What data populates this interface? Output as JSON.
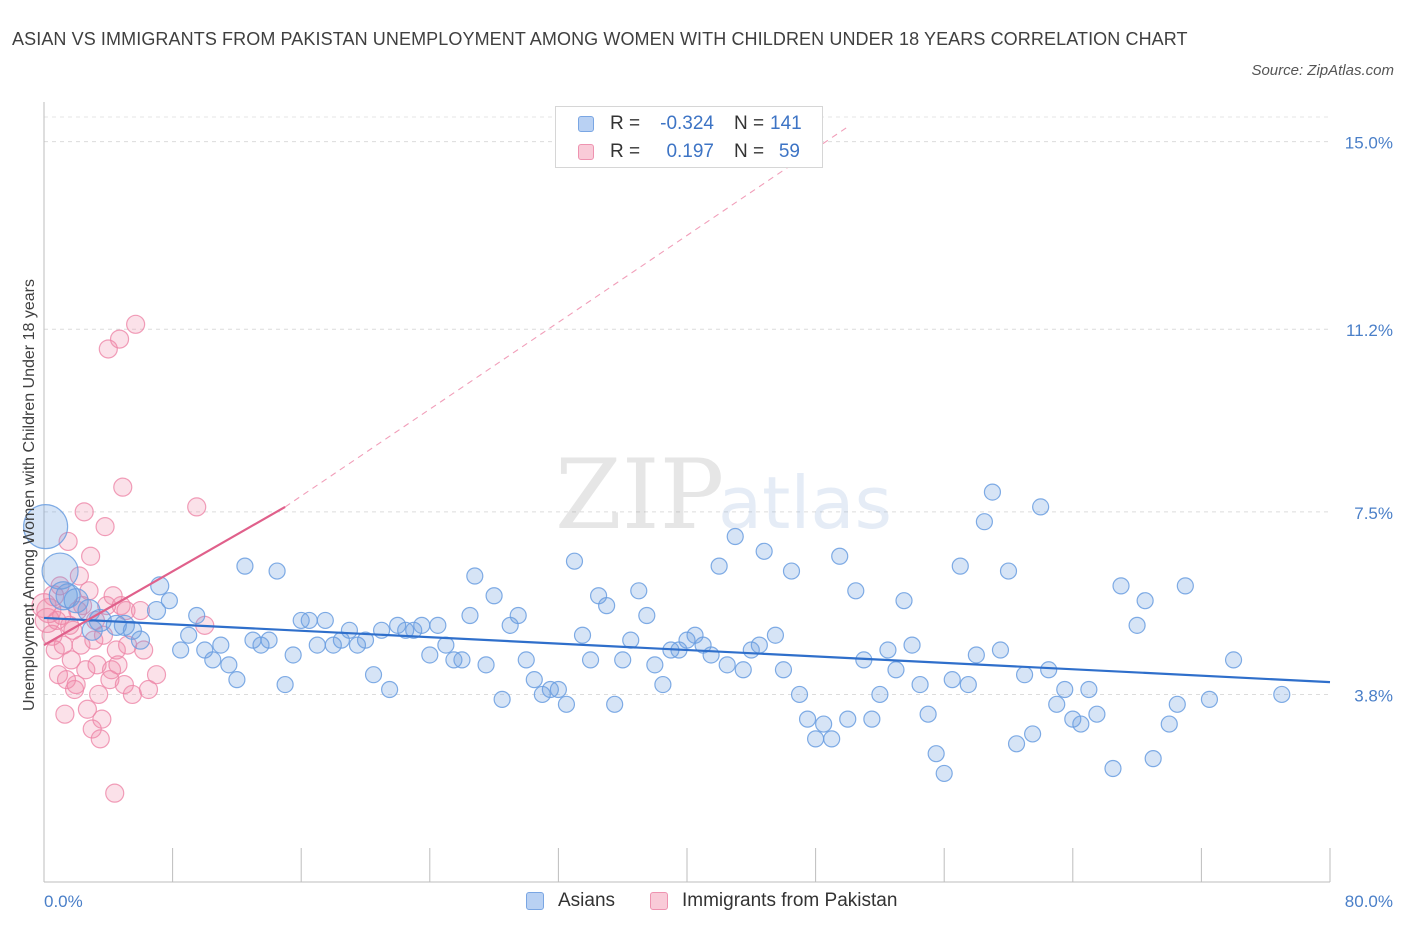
{
  "title": "ASIAN VS IMMIGRANTS FROM PAKISTAN UNEMPLOYMENT AMONG WOMEN WITH CHILDREN UNDER 18 YEARS CORRELATION CHART",
  "source": "Source: ZipAtlas.com",
  "watermark": {
    "zip": "ZIP",
    "atlas": "atlas"
  },
  "legend": {
    "rows": [
      {
        "r_label": "R =",
        "r_value": "-0.324",
        "n_label": "N =",
        "n_value": "141",
        "color": "#a9c6ee"
      },
      {
        "r_label": "R =",
        "r_value": "0.197",
        "n_label": "N =",
        "n_value": "59",
        "color": "#f6b8cb"
      }
    ]
  },
  "bottom_legend": [
    {
      "label": "Asians",
      "color": "#a9c6ee"
    },
    {
      "label": "Immigrants from Pakistan",
      "color": "#f6b8cb"
    }
  ],
  "chart_data": {
    "type": "scatter",
    "ylabel": "Unemployment Among Women with Children Under 18 years",
    "xlim": [
      0,
      80
    ],
    "ylim": [
      0,
      15.5
    ],
    "x_tick_labels": [
      "0.0%",
      "80.0%"
    ],
    "y_ticks": [
      3.8,
      7.5,
      11.2,
      15.0
    ],
    "y_tick_labels": [
      "3.8%",
      "7.5%",
      "11.2%",
      "15.0%"
    ],
    "grid": "horizontal dashed",
    "legend_position": "top-center",
    "colors": {
      "asians": "#6a9de0",
      "pakistan": "#ee86a8",
      "asians_line": "#2f6fcb",
      "pakistan_line": "#e0608b"
    },
    "series": [
      {
        "name": "Asians",
        "points": [
          [
            0.1,
            7.2,
            22
          ],
          [
            1.0,
            6.3,
            18
          ],
          [
            1.2,
            5.8,
            14
          ],
          [
            1.5,
            5.8,
            12
          ],
          [
            2.0,
            5.7,
            12
          ],
          [
            2.8,
            5.5,
            11
          ],
          [
            3.5,
            5.3,
            11
          ],
          [
            4.5,
            5.2,
            10
          ],
          [
            5.0,
            5.2,
            10
          ],
          [
            3.0,
            5.1,
            10
          ],
          [
            5.5,
            5.1,
            9
          ],
          [
            6.0,
            4.9,
            9
          ],
          [
            7.0,
            5.5,
            9
          ],
          [
            7.2,
            6.0,
            9
          ],
          [
            7.8,
            5.7,
            8
          ],
          [
            8.5,
            4.7,
            8
          ],
          [
            9.0,
            5.0,
            8
          ],
          [
            9.5,
            5.4,
            8
          ],
          [
            10.0,
            4.7,
            8
          ],
          [
            10.5,
            4.5,
            8
          ],
          [
            11.0,
            4.8,
            8
          ],
          [
            11.5,
            4.4,
            8
          ],
          [
            12.0,
            4.1,
            8
          ],
          [
            12.5,
            6.4,
            8
          ],
          [
            13.0,
            4.9,
            8
          ],
          [
            13.5,
            4.8,
            8
          ],
          [
            14.0,
            4.9,
            8
          ],
          [
            14.5,
            6.3,
            8
          ],
          [
            15.0,
            4.0,
            8
          ],
          [
            15.5,
            4.6,
            8
          ],
          [
            16.0,
            5.3,
            8
          ],
          [
            16.5,
            5.3,
            8
          ],
          [
            17.0,
            4.8,
            8
          ],
          [
            17.5,
            5.3,
            8
          ],
          [
            18.0,
            4.8,
            8
          ],
          [
            18.5,
            4.9,
            8
          ],
          [
            19.0,
            5.1,
            8
          ],
          [
            19.5,
            4.8,
            8
          ],
          [
            20.0,
            4.9,
            8
          ],
          [
            20.5,
            4.2,
            8
          ],
          [
            21.0,
            5.1,
            8
          ],
          [
            21.5,
            3.9,
            8
          ],
          [
            22.0,
            5.2,
            8
          ],
          [
            22.5,
            5.1,
            8
          ],
          [
            23.0,
            5.1,
            8
          ],
          [
            23.5,
            5.2,
            8
          ],
          [
            24.0,
            4.6,
            8
          ],
          [
            24.5,
            5.2,
            8
          ],
          [
            25.0,
            4.8,
            8
          ],
          [
            25.5,
            4.5,
            8
          ],
          [
            26.0,
            4.5,
            8
          ],
          [
            26.5,
            5.4,
            8
          ],
          [
            26.8,
            6.2,
            8
          ],
          [
            27.5,
            4.4,
            8
          ],
          [
            28.0,
            5.8,
            8
          ],
          [
            28.5,
            3.7,
            8
          ],
          [
            29.0,
            5.2,
            8
          ],
          [
            29.5,
            5.4,
            8
          ],
          [
            30.0,
            4.5,
            8
          ],
          [
            30.5,
            4.1,
            8
          ],
          [
            31.0,
            3.8,
            8
          ],
          [
            31.5,
            3.9,
            8
          ],
          [
            32.0,
            3.9,
            8
          ],
          [
            32.5,
            3.6,
            8
          ],
          [
            33.0,
            6.5,
            8
          ],
          [
            33.5,
            5.0,
            8
          ],
          [
            34.0,
            4.5,
            8
          ],
          [
            34.5,
            5.8,
            8
          ],
          [
            35.0,
            5.6,
            8
          ],
          [
            35.5,
            3.6,
            8
          ],
          [
            36.0,
            4.5,
            8
          ],
          [
            36.5,
            4.9,
            8
          ],
          [
            37.0,
            5.9,
            8
          ],
          [
            37.5,
            5.4,
            8
          ],
          [
            38.0,
            4.4,
            8
          ],
          [
            38.5,
            4.0,
            8
          ],
          [
            39.0,
            4.7,
            8
          ],
          [
            39.5,
            4.7,
            8
          ],
          [
            40.0,
            4.9,
            8
          ],
          [
            40.5,
            5.0,
            8
          ],
          [
            41.0,
            4.8,
            8
          ],
          [
            41.5,
            4.6,
            8
          ],
          [
            42.0,
            6.4,
            8
          ],
          [
            42.5,
            4.4,
            8
          ],
          [
            43.0,
            7.0,
            8
          ],
          [
            43.5,
            4.3,
            8
          ],
          [
            44.0,
            4.7,
            8
          ],
          [
            44.5,
            4.8,
            8
          ],
          [
            44.8,
            6.7,
            8
          ],
          [
            45.5,
            5.0,
            8
          ],
          [
            46.0,
            4.3,
            8
          ],
          [
            46.5,
            6.3,
            8
          ],
          [
            47.0,
            3.8,
            8
          ],
          [
            47.5,
            3.3,
            8
          ],
          [
            48.0,
            2.9,
            8
          ],
          [
            48.5,
            3.2,
            8
          ],
          [
            49.0,
            2.9,
            8
          ],
          [
            49.5,
            6.6,
            8
          ],
          [
            50.0,
            3.3,
            8
          ],
          [
            50.5,
            5.9,
            8
          ],
          [
            51.0,
            4.5,
            8
          ],
          [
            51.5,
            3.3,
            8
          ],
          [
            52.0,
            3.8,
            8
          ],
          [
            52.5,
            4.7,
            8
          ],
          [
            53.0,
            4.3,
            8
          ],
          [
            53.5,
            5.7,
            8
          ],
          [
            54.0,
            4.8,
            8
          ],
          [
            54.5,
            4.0,
            8
          ],
          [
            55.0,
            3.4,
            8
          ],
          [
            55.5,
            2.6,
            8
          ],
          [
            56.0,
            2.2,
            8
          ],
          [
            56.5,
            4.1,
            8
          ],
          [
            57.0,
            6.4,
            8
          ],
          [
            57.5,
            4.0,
            8
          ],
          [
            58.0,
            4.6,
            8
          ],
          [
            58.5,
            7.3,
            8
          ],
          [
            59.0,
            7.9,
            8
          ],
          [
            59.5,
            4.7,
            8
          ],
          [
            60.0,
            6.3,
            8
          ],
          [
            60.5,
            2.8,
            8
          ],
          [
            61.0,
            4.2,
            8
          ],
          [
            61.5,
            3.0,
            8
          ],
          [
            62.0,
            7.6,
            8
          ],
          [
            62.5,
            4.3,
            8
          ],
          [
            63.0,
            3.6,
            8
          ],
          [
            63.5,
            3.9,
            8
          ],
          [
            64.0,
            3.3,
            8
          ],
          [
            64.5,
            3.2,
            8
          ],
          [
            65.0,
            3.9,
            8
          ],
          [
            65.5,
            3.4,
            8
          ],
          [
            66.5,
            2.3,
            8
          ],
          [
            67.0,
            6.0,
            8
          ],
          [
            68.0,
            5.2,
            8
          ],
          [
            68.5,
            5.7,
            8
          ],
          [
            69.0,
            2.5,
            8
          ],
          [
            70.0,
            3.2,
            8
          ],
          [
            70.5,
            3.6,
            8
          ],
          [
            71.0,
            6.0,
            8
          ],
          [
            72.5,
            3.7,
            8
          ],
          [
            74.0,
            4.5,
            8
          ],
          [
            77.0,
            3.8,
            8
          ]
        ],
        "trend": {
          "x": [
            0,
            80
          ],
          "y": [
            5.35,
            4.05
          ]
        }
      },
      {
        "name": "Immigrants from Pakistan",
        "points": [
          [
            0.0,
            5.6,
            12
          ],
          [
            0.2,
            5.3,
            12
          ],
          [
            0.3,
            5.5,
            12
          ],
          [
            0.5,
            5.0,
            10
          ],
          [
            0.6,
            5.8,
            10
          ],
          [
            0.7,
            4.7,
            9
          ],
          [
            0.8,
            5.3,
            9
          ],
          [
            0.9,
            4.2,
            9
          ],
          [
            1.0,
            6.0,
            9
          ],
          [
            1.1,
            5.4,
            9
          ],
          [
            1.2,
            4.8,
            9
          ],
          [
            1.3,
            3.4,
            9
          ],
          [
            1.4,
            4.1,
            9
          ],
          [
            1.5,
            6.9,
            9
          ],
          [
            1.6,
            5.2,
            9
          ],
          [
            1.7,
            4.5,
            9
          ],
          [
            1.8,
            5.1,
            9
          ],
          [
            1.9,
            3.9,
            9
          ],
          [
            2.0,
            4.0,
            9
          ],
          [
            2.1,
            5.5,
            9
          ],
          [
            2.2,
            6.2,
            9
          ],
          [
            2.3,
            4.8,
            9
          ],
          [
            2.4,
            5.6,
            9
          ],
          [
            2.5,
            7.5,
            9
          ],
          [
            2.6,
            4.3,
            9
          ],
          [
            2.7,
            3.5,
            9
          ],
          [
            2.8,
            5.9,
            9
          ],
          [
            2.9,
            6.6,
            9
          ],
          [
            3.0,
            3.1,
            9
          ],
          [
            3.1,
            4.9,
            9
          ],
          [
            3.2,
            5.3,
            9
          ],
          [
            3.3,
            4.4,
            9
          ],
          [
            3.4,
            3.8,
            9
          ],
          [
            3.5,
            2.9,
            9
          ],
          [
            3.6,
            3.3,
            9
          ],
          [
            3.7,
            5.0,
            9
          ],
          [
            3.8,
            7.2,
            9
          ],
          [
            3.9,
            5.6,
            9
          ],
          [
            4.0,
            10.8,
            9
          ],
          [
            4.1,
            4.1,
            9
          ],
          [
            4.2,
            4.3,
            9
          ],
          [
            4.3,
            5.8,
            9
          ],
          [
            4.4,
            1.8,
            9
          ],
          [
            4.5,
            4.7,
            9
          ],
          [
            4.6,
            4.4,
            9
          ],
          [
            4.7,
            11.0,
            9
          ],
          [
            4.8,
            5.6,
            9
          ],
          [
            4.9,
            8.0,
            9
          ],
          [
            5.0,
            4.0,
            9
          ],
          [
            5.1,
            5.5,
            9
          ],
          [
            5.2,
            4.8,
            9
          ],
          [
            5.5,
            3.8,
            9
          ],
          [
            5.7,
            11.3,
            9
          ],
          [
            6.0,
            5.5,
            9
          ],
          [
            6.2,
            4.7,
            9
          ],
          [
            6.5,
            3.9,
            9
          ],
          [
            7.0,
            4.2,
            9
          ],
          [
            9.5,
            7.6,
            9
          ],
          [
            10.0,
            5.2,
            9
          ]
        ],
        "trend": {
          "x": [
            0,
            15
          ],
          "y": [
            4.8,
            7.6
          ]
        },
        "trend_extension": {
          "x": [
            15,
            50
          ],
          "y": [
            7.6,
            15.3
          ]
        }
      }
    ]
  }
}
